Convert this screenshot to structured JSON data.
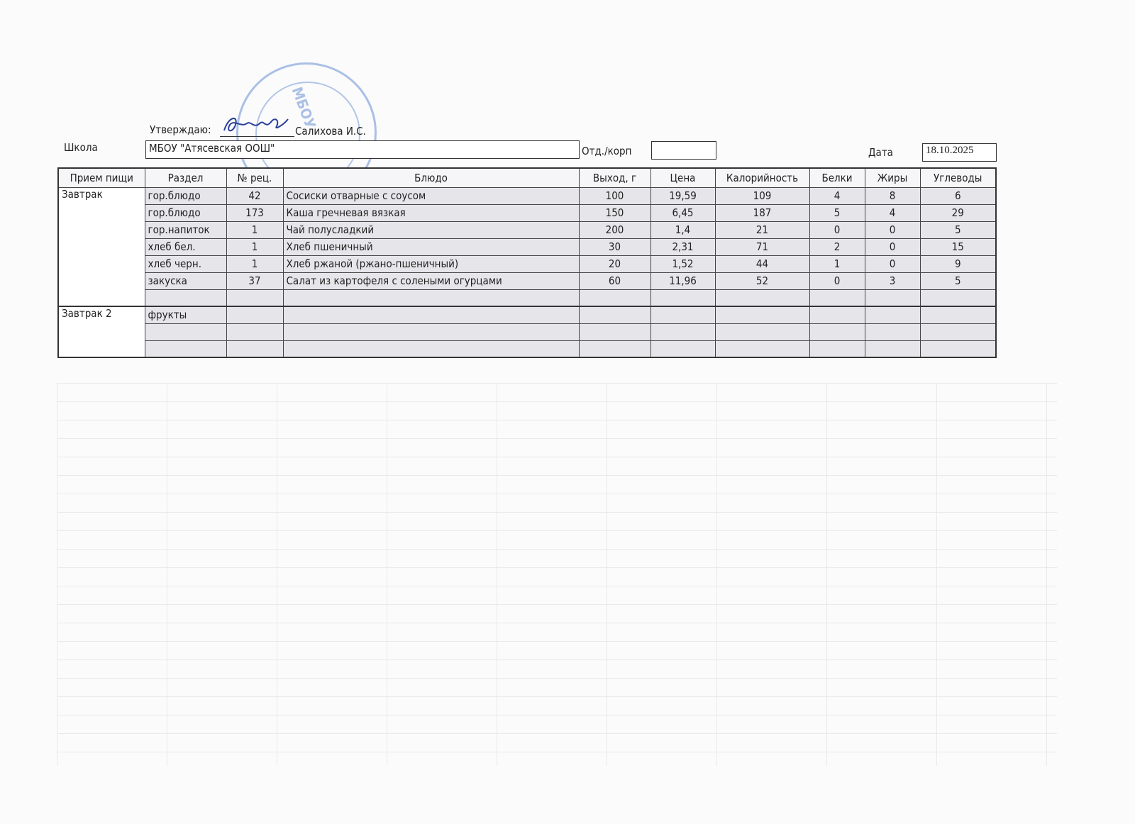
{
  "header": {
    "approve_label": "Утверждаю:",
    "approver": "Салихова И.С.",
    "school_label": "Школа",
    "school_value": "МБОУ \"Атясевская ООШ\"",
    "dept_label": "Отд./корп",
    "dept_value": "",
    "date_label": "Дата",
    "date_value": "18.10.2025"
  },
  "stamp": {
    "text": "МБОУ"
  },
  "table": {
    "columns": [
      "Прием пищи",
      "Раздел",
      "№ рец.",
      "Блюдо",
      "Выход, г",
      "Цена",
      "Калорийность",
      "Белки",
      "Жиры",
      "Углеводы"
    ],
    "breakfast": {
      "meal": "Завтрак",
      "rows": [
        [
          "гор.блюдо",
          "42",
          "Сосиски отварные с соусом",
          "100",
          "19,59",
          "109",
          "4",
          "8",
          "6"
        ],
        [
          "гор.блюдо",
          "173",
          "Каша гречневая вязкая",
          "150",
          "6,45",
          "187",
          "5",
          "4",
          "29"
        ],
        [
          "гор.напиток",
          "1",
          "Чай полусладкий",
          "200",
          "1,4",
          "21",
          "0",
          "0",
          "5"
        ],
        [
          "хлеб бел.",
          "1",
          "Хлеб пшеничный",
          "30",
          "2,31",
          "71",
          "2",
          "0",
          "15"
        ],
        [
          "хлеб черн.",
          "1",
          "Хлеб ржаной (ржано-пшеничный)",
          "20",
          "1,52",
          "44",
          "1",
          "0",
          "9"
        ],
        [
          "закуска",
          "37",
          "Салат из картофеля с солеными огурцами",
          "60",
          "11,96",
          "52",
          "0",
          "3",
          "5"
        ]
      ]
    },
    "breakfast2": {
      "meal": "Завтрак 2",
      "section": "фрукты"
    }
  }
}
